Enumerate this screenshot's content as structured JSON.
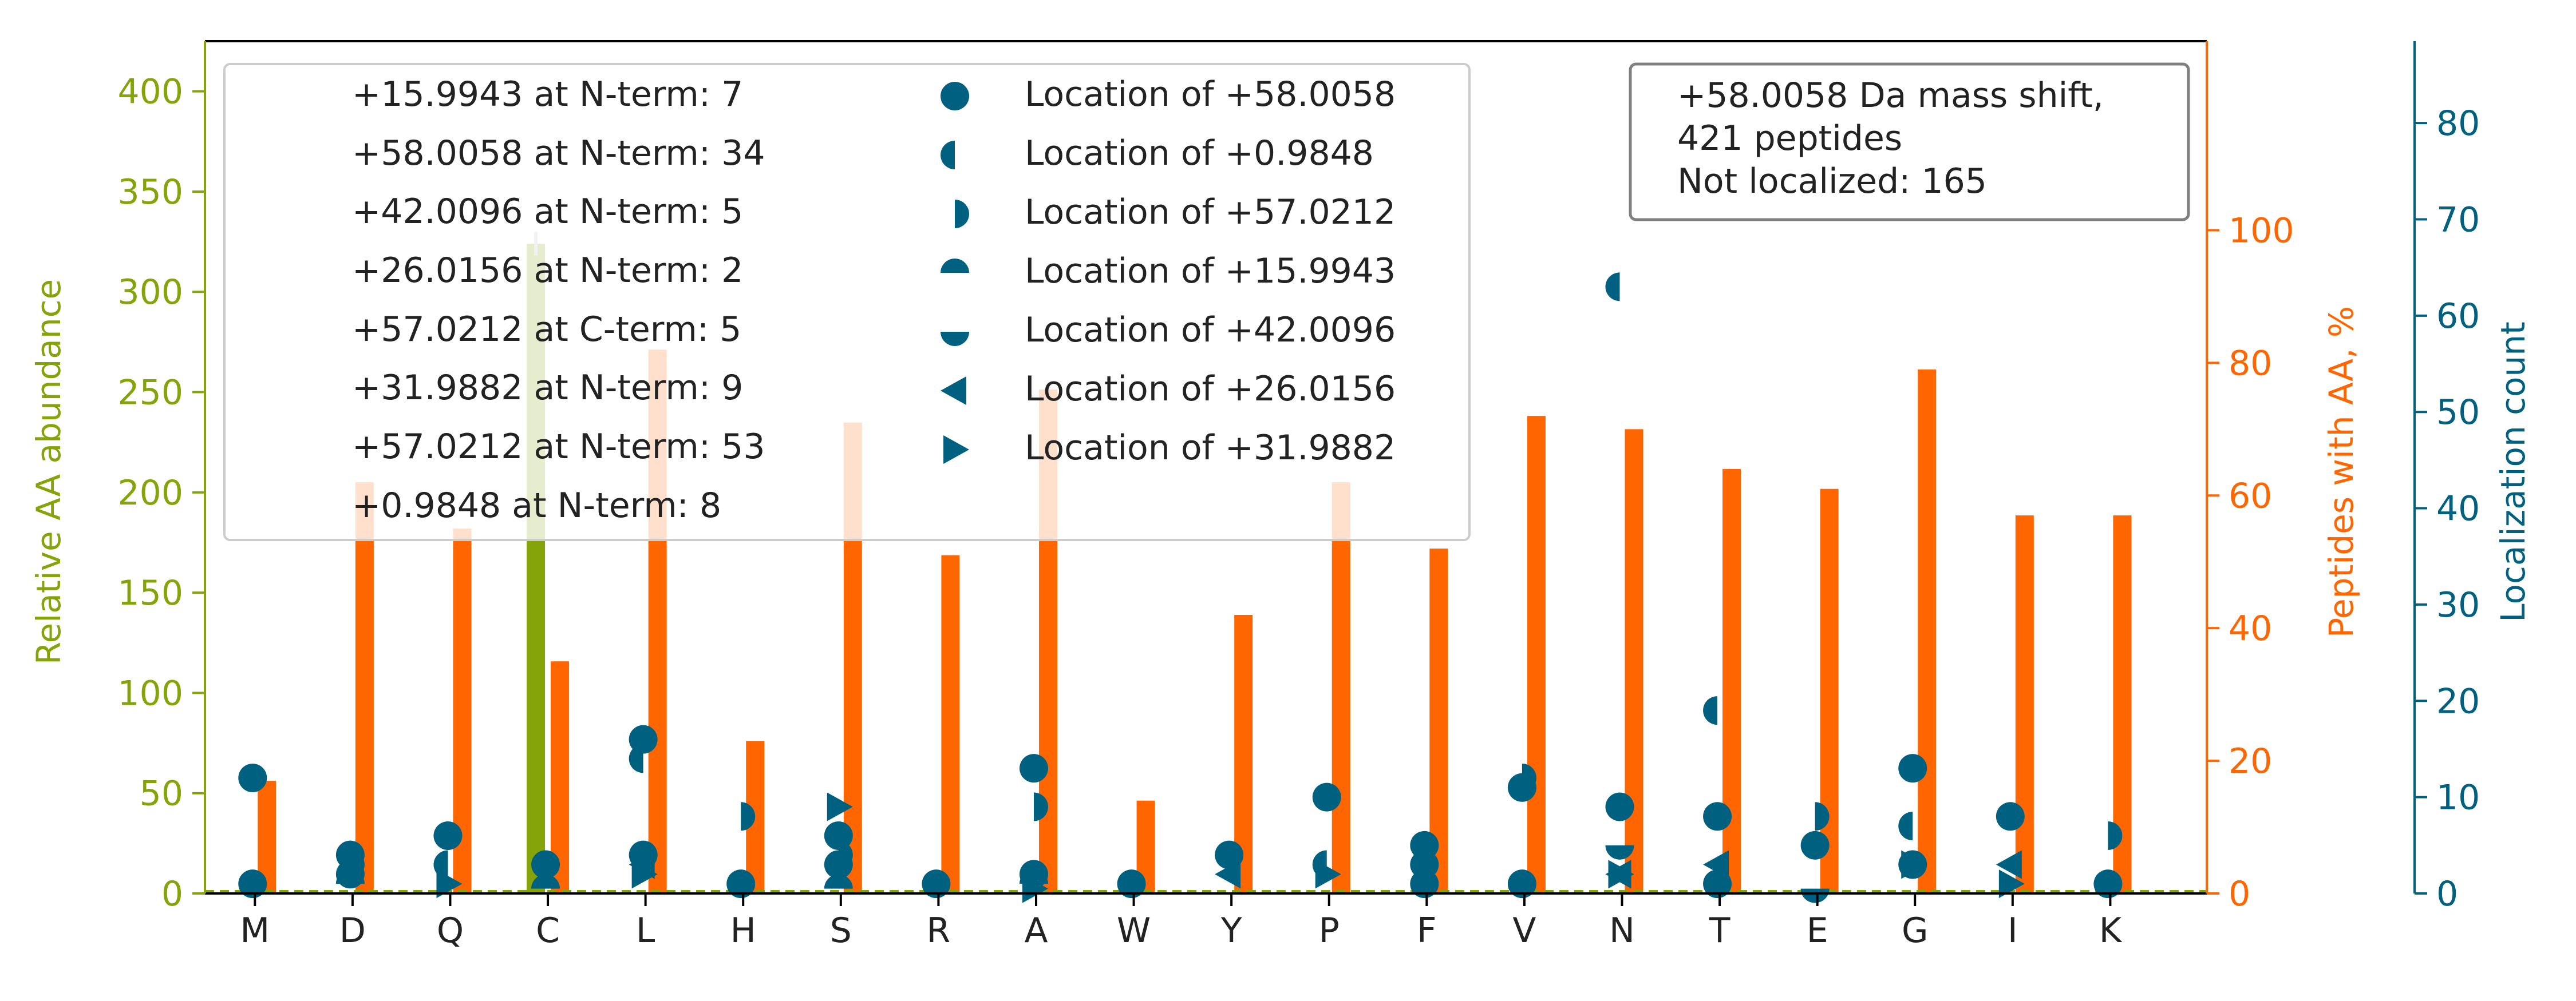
{
  "chart_data": {
    "type": "bar",
    "categories": [
      "M",
      "D",
      "Q",
      "C",
      "L",
      "H",
      "S",
      "R",
      "A",
      "W",
      "Y",
      "P",
      "F",
      "V",
      "N",
      "T",
      "E",
      "G",
      "I",
      "K"
    ],
    "abundance_axis": {
      "label": "Relative AA abundance",
      "ylim": [
        0,
        425
      ],
      "ticks": [
        0,
        50,
        100,
        150,
        200,
        250,
        300,
        350,
        400
      ],
      "color": "#84a40a"
    },
    "percent_axis": {
      "label": "Peptides with AA, %",
      "ylim": [
        0,
        128.5
      ],
      "ticks": [
        0,
        20,
        40,
        60,
        80,
        100
      ],
      "color": "#ff6600"
    },
    "count_axis": {
      "label": "Localization count",
      "ylim": [
        0,
        88.5
      ],
      "ticks": [
        0,
        10,
        20,
        30,
        40,
        50,
        60,
        70,
        80
      ],
      "color": "#006080"
    },
    "series": [
      {
        "name": "Relative AA abundance",
        "axis": "abundance",
        "color": "#84a40a",
        "values": [
          0,
          0,
          0,
          324,
          0,
          0,
          0,
          0,
          0,
          0,
          0,
          0,
          0,
          0,
          0,
          0,
          0,
          0,
          0,
          0
        ],
        "error": [
          0,
          0,
          0,
          3,
          0,
          0,
          0,
          0,
          0,
          0,
          0,
          0,
          0,
          0,
          0,
          0,
          0,
          0,
          0,
          0
        ]
      },
      {
        "name": "Peptides with AA, %",
        "axis": "percent",
        "color": "#ff6600",
        "values": [
          17,
          62,
          55,
          35,
          82,
          23,
          71,
          51,
          76,
          14,
          42,
          62,
          52,
          72,
          70,
          64,
          61,
          79,
          57,
          57
        ]
      }
    ],
    "localization_markers": [
      {
        "legend": "Location of +58.0058",
        "marker": "circle",
        "points": [
          [
            "M",
            12
          ],
          [
            "M",
            1
          ],
          [
            "D",
            4
          ],
          [
            "D",
            2
          ],
          [
            "Q",
            6
          ],
          [
            "C",
            3
          ],
          [
            "L",
            16
          ],
          [
            "L",
            4
          ],
          [
            "H",
            1
          ],
          [
            "S",
            6
          ],
          [
            "S",
            3
          ],
          [
            "R",
            1
          ],
          [
            "A",
            13
          ],
          [
            "A",
            2
          ],
          [
            "W",
            1
          ],
          [
            "Y",
            4
          ],
          [
            "P",
            10
          ],
          [
            "F",
            5
          ],
          [
            "F",
            3
          ],
          [
            "F",
            1
          ],
          [
            "V",
            11
          ],
          [
            "V",
            1
          ],
          [
            "N",
            9
          ],
          [
            "T",
            8
          ],
          [
            "T",
            1
          ],
          [
            "E",
            5
          ],
          [
            "G",
            13
          ],
          [
            "G",
            3
          ],
          [
            "I",
            8
          ],
          [
            "K",
            1
          ]
        ]
      },
      {
        "legend": "Location of +0.9848",
        "marker": "half-left",
        "points": [
          [
            "Q",
            3
          ],
          [
            "L",
            14
          ],
          [
            "P",
            3
          ],
          [
            "N",
            63
          ],
          [
            "T",
            19
          ],
          [
            "G",
            7
          ]
        ]
      },
      {
        "legend": "Location of +57.0212",
        "marker": "half-right",
        "points": [
          [
            "D",
            3
          ],
          [
            "H",
            8
          ],
          [
            "S",
            4
          ],
          [
            "A",
            9
          ],
          [
            "V",
            12
          ],
          [
            "E",
            8
          ],
          [
            "K",
            6
          ]
        ]
      },
      {
        "legend": "Location of +15.9943",
        "marker": "half-top",
        "points": [
          [
            "D",
            1
          ],
          [
            "C",
            0.5
          ],
          [
            "S",
            0.5
          ],
          [
            "A",
            1
          ]
        ]
      },
      {
        "legend": "Location of +42.0096",
        "marker": "half-bottom",
        "points": [
          [
            "N",
            5
          ],
          [
            "E",
            0.5
          ]
        ]
      },
      {
        "legend": "Location of +26.0156",
        "marker": "triangle-left",
        "points": [
          [
            "L",
            3
          ],
          [
            "N",
            2
          ],
          [
            "T",
            3
          ],
          [
            "I",
            3
          ],
          [
            "Y",
            2
          ]
        ]
      },
      {
        "legend": "Location of +31.9882",
        "marker": "triangle-right",
        "points": [
          [
            "S",
            9
          ],
          [
            "L",
            2
          ],
          [
            "A",
            0.5
          ],
          [
            "N",
            2
          ],
          [
            "P",
            2
          ],
          [
            "G",
            3
          ],
          [
            "I",
            1
          ],
          [
            "Q",
            1
          ]
        ]
      }
    ],
    "nterm_legend": [
      "+15.9943 at N-term: 7",
      "+58.0058 at N-term: 34",
      "+42.0096 at N-term: 5",
      "+26.0156 at N-term: 2",
      "+57.0212 at C-term: 5",
      "+31.9882 at N-term: 9",
      "+57.0212 at N-term: 53",
      "+0.9848 at N-term: 8"
    ],
    "info_box": [
      "+58.0058 Da mass shift,",
      "421 peptides",
      "Not localized: 165"
    ],
    "legend_placement": "top-left and top-right",
    "grid": false
  }
}
